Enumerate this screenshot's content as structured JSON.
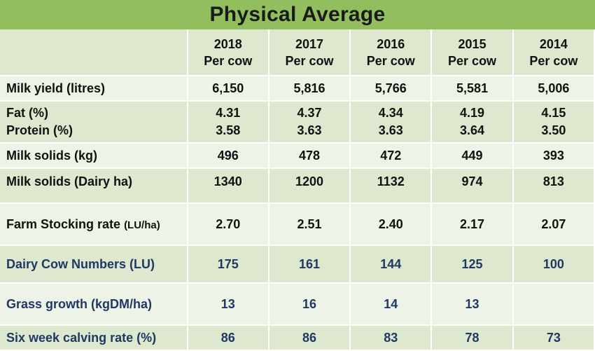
{
  "title": "Physical Average",
  "header": {
    "label": "",
    "columns": [
      {
        "year": "2018",
        "sub": "Per cow"
      },
      {
        "year": "2017",
        "sub": "Per cow"
      },
      {
        "year": "2016",
        "sub": "Per cow"
      },
      {
        "year": "2015",
        "sub": "Per cow"
      },
      {
        "year": "2014",
        "sub": "Per cow"
      }
    ]
  },
  "rows": {
    "milk_yield": {
      "label": "Milk yield (litres)",
      "values": [
        "6,150",
        "5,816",
        "5,766",
        "5,581",
        "5,006"
      ]
    },
    "fat": {
      "label": "Fat (%)",
      "values": [
        "4.31",
        "4.37",
        "4.34",
        "4.19",
        "4.15"
      ]
    },
    "protein": {
      "label": "Protein (%)",
      "values": [
        "3.58",
        "3.63",
        "3.63",
        "3.64",
        "3.50"
      ]
    },
    "milk_solids_kg": {
      "label": "Milk solids (kg)",
      "values": [
        "496",
        "478",
        "472",
        "449",
        "393"
      ]
    },
    "milk_solids_ha": {
      "label": "Milk solids (Dairy ha)",
      "values": [
        "1340",
        "1200",
        "1132",
        "974",
        "813"
      ]
    },
    "stocking_rate": {
      "label": "Farm Stocking rate",
      "unit": "(LU/ha)",
      "values": [
        "2.70",
        "2.51",
        "2.40",
        "2.17",
        "2.07"
      ]
    },
    "cow_numbers": {
      "label": "Dairy Cow Numbers (LU)",
      "values": [
        "175",
        "161",
        "144",
        "125",
        "100"
      ]
    },
    "grass_growth": {
      "label": "Grass growth (kgDM/ha)",
      "values": [
        "13",
        "16",
        "14",
        "13",
        ""
      ]
    },
    "calving_rate": {
      "label": "Six week calving rate (%)",
      "values": [
        "86",
        "86",
        "83",
        "78",
        "73"
      ]
    }
  },
  "colors": {
    "title_bar": "#93be5e",
    "row_dark": "#dde8cf",
    "row_light": "#eef3e8",
    "blue_text": "#1f3864"
  }
}
